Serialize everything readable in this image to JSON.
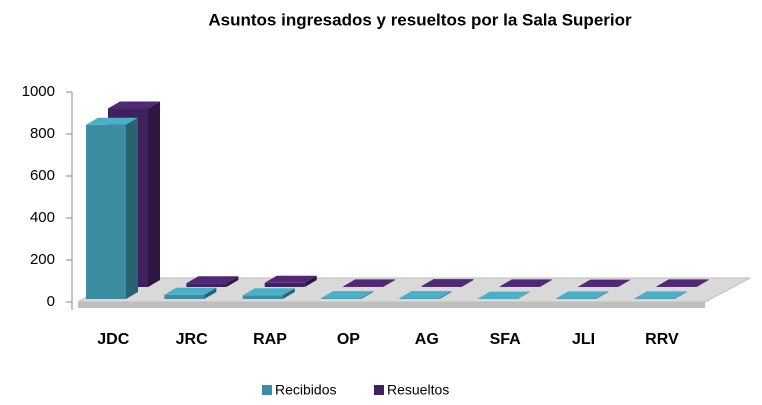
{
  "chart_data": {
    "type": "bar3d",
    "title": "Asuntos ingresados y resueltos por la Sala Superior",
    "categories": [
      "JDC",
      "JRC",
      "RAP",
      "OP",
      "AG",
      "SFA",
      "JLI",
      "RRV"
    ],
    "series": [
      {
        "name": "Recibidos",
        "color": "#3b8da1",
        "values": [
          830,
          20,
          18,
          4,
          4,
          2,
          3,
          3
        ]
      },
      {
        "name": "Resueltos",
        "color": "#40205e",
        "values": [
          850,
          18,
          20,
          3,
          4,
          3,
          2,
          3
        ]
      }
    ],
    "ylim": [
      0,
      1000
    ],
    "yticks": [
      0,
      200,
      400,
      600,
      800,
      1000
    ],
    "legend": "bottom"
  }
}
